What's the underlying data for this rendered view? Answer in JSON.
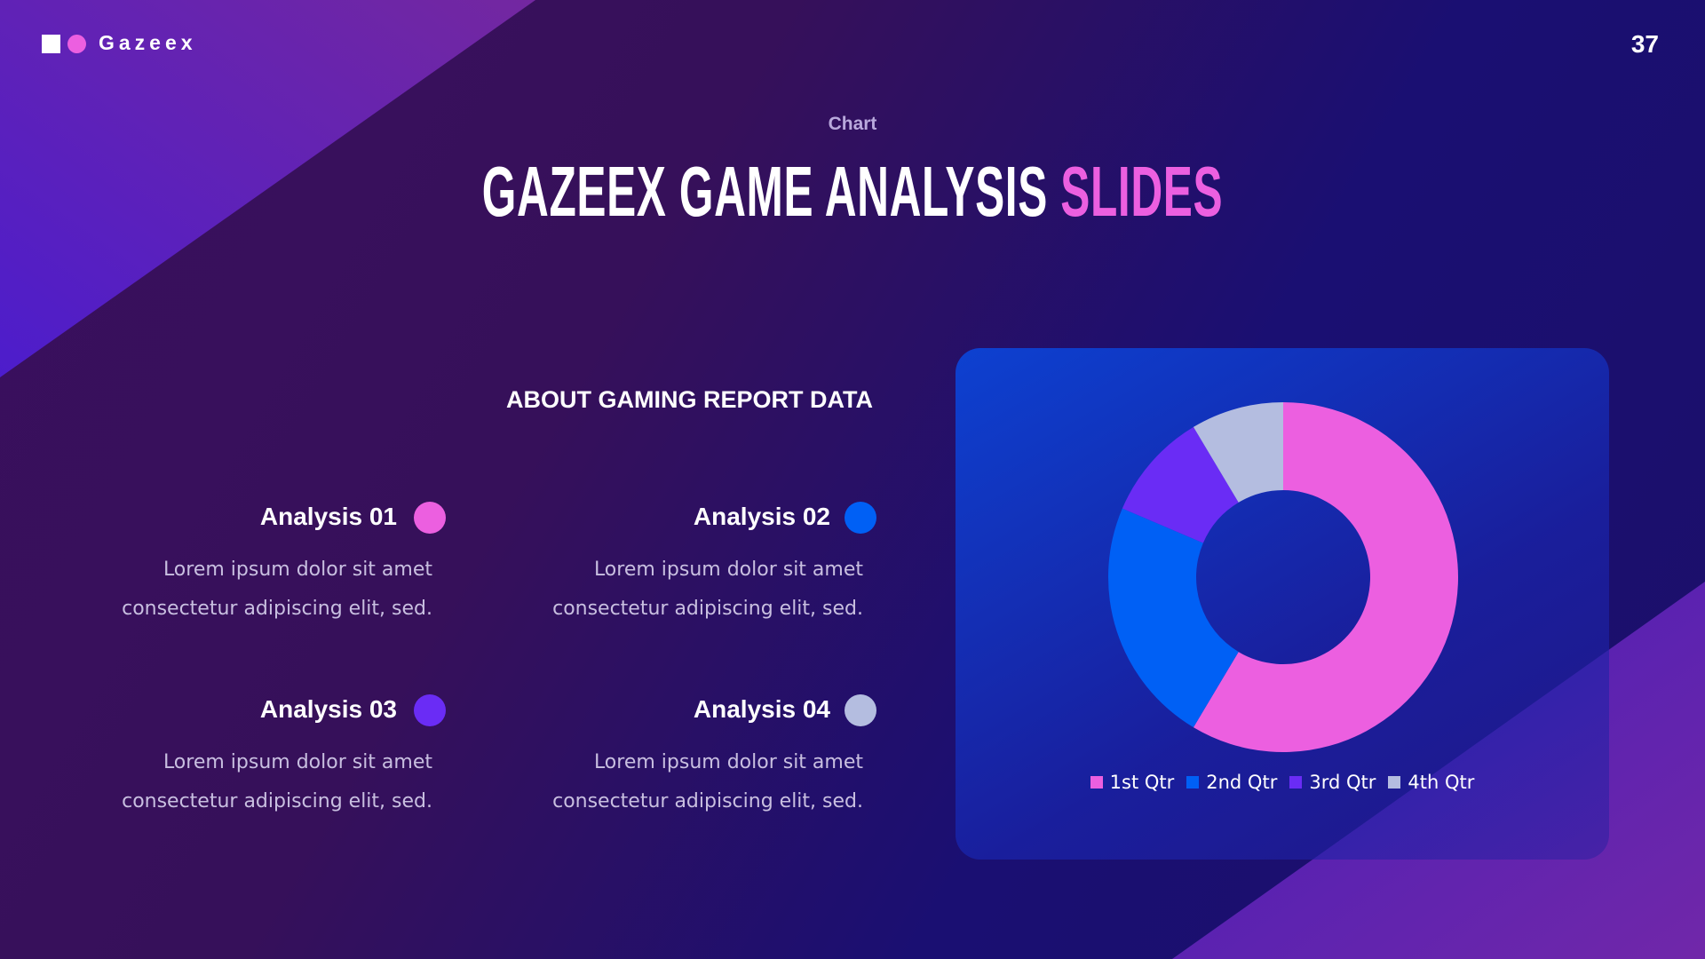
{
  "brand": "Gazeex",
  "page_number": "37",
  "subtitle": "Chart",
  "title": {
    "main": "GAZEEX GAME ANALYSIS",
    "highlight": "SLIDES"
  },
  "section_heading": "ABOUT GAMING REPORT DATA",
  "analyses": [
    {
      "title": "Analysis 01",
      "line1": "Lorem ipsum dolor sit amet",
      "line2": "consectetur adipiscing elit, sed.",
      "color": "#ec5fe0"
    },
    {
      "title": "Analysis 02",
      "line1": "Lorem ipsum dolor sit amet",
      "line2": "consectetur adipiscing elit, sed.",
      "color": "#0060f5"
    },
    {
      "title": "Analysis 03",
      "line1": "Lorem ipsum dolor sit amet",
      "line2": "consectetur adipiscing elit, sed.",
      "color": "#6a2cf5"
    },
    {
      "title": "Analysis 04",
      "line1": "Lorem ipsum dolor sit amet",
      "line2": "consectetur adipiscing elit, sed.",
      "color": "#b4bde0"
    }
  ],
  "chart_data": {
    "type": "pie",
    "variant": "donut",
    "categories": [
      "1st Qtr",
      "2nd Qtr",
      "3rd Qtr",
      "4th Qtr"
    ],
    "values": [
      8.2,
      3.2,
      1.4,
      1.2
    ],
    "colors": [
      "#ec5fe0",
      "#0060f5",
      "#6a2cf5",
      "#b4bde0"
    ],
    "legend": "bottom"
  }
}
